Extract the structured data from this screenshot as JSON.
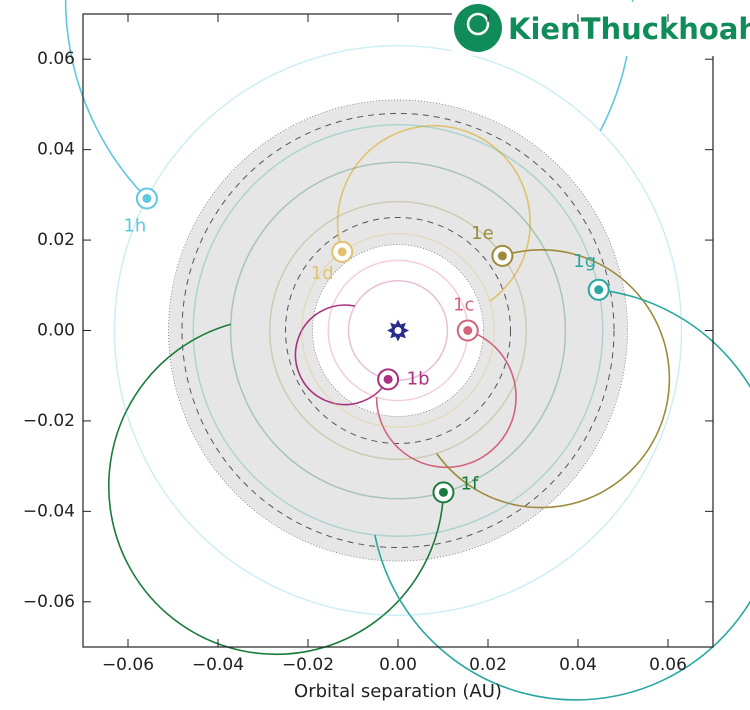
{
  "chart_data": {
    "type": "orbit",
    "watermark": "KienThuckhoahoc.org",
    "xlabel": "Orbital separation (AU)",
    "xlim": [
      -0.07,
      0.07
    ],
    "ylim": [
      -0.07,
      0.07
    ],
    "xticks": [
      {
        "value": -0.06,
        "label": "−0.06"
      },
      {
        "value": -0.04,
        "label": "−0.04"
      },
      {
        "value": -0.02,
        "label": "−0.02"
      },
      {
        "value": 0,
        "label": "0.00"
      },
      0.02,
      0.04,
      0.06
    ],
    "yticks": [
      {
        "value": -0.06,
        "label": "−0.06"
      },
      {
        "value": -0.04,
        "label": "−0.04"
      },
      {
        "value": -0.02,
        "label": "−0.02"
      },
      {
        "value": 0,
        "label": "0.00"
      },
      0.02,
      0.04,
      0.06
    ],
    "shaded_zone": [
      0.019,
      0.051
    ],
    "dashed_circles": [
      0.025,
      0.048
    ],
    "star": {
      "x": 0,
      "y": 0,
      "color": "#2b2d8c"
    },
    "planets": [
      {
        "name": "1b",
        "radius": 0.011,
        "x": -0.0022,
        "y": -0.0108,
        "color": "#a8327f"
      },
      {
        "name": "1c",
        "radius": 0.0155,
        "x": 0.0155,
        "y": 0,
        "color": "#d3637b"
      },
      {
        "name": "1d",
        "radius": 0.0214,
        "x": -0.0124,
        "y": 0.0174,
        "color": "#e2c170"
      },
      {
        "name": "1e",
        "radius": 0.0285,
        "x": 0.0232,
        "y": 0.0165,
        "color": "#9c8b3b"
      },
      {
        "name": "1f",
        "radius": 0.0372,
        "x": 0.0101,
        "y": -0.0358,
        "color": "#1b7b3c"
      },
      {
        "name": "1g",
        "radius": 0.0455,
        "x": 0.0446,
        "y": 0.009,
        "color": "#2aa8a0"
      },
      {
        "name": "1h",
        "radius": 0.063,
        "x": -0.0558,
        "y": 0.0292,
        "color": "#5ec8e0"
      }
    ]
  }
}
